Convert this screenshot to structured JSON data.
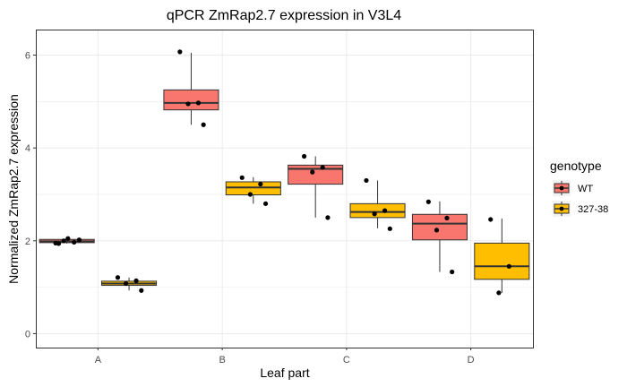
{
  "chart_data": {
    "type": "boxplot",
    "title": "qPCR ZmRap2.7 expression in V3L4",
    "xlabel": "Leaf part",
    "ylabel": "Normalized ZmRap2.7 expression",
    "categories": [
      "A",
      "B",
      "C",
      "D"
    ],
    "ylim": [
      -0.3,
      6.55
    ],
    "yticks": [
      0,
      2,
      4,
      6
    ],
    "grid": true,
    "legend": {
      "title": "genotype",
      "position": "right"
    },
    "series": [
      {
        "name": "WT",
        "color": "#F8766D",
        "boxes": [
          {
            "category": "A",
            "whisker_low": 1.94,
            "q1": 1.96,
            "median": 1.99,
            "q3": 2.03,
            "whisker_high": 2.05,
            "points": [
              1.95,
              1.97,
              2.0,
              2.02,
              2.05,
              1.94
            ]
          },
          {
            "category": "B",
            "whisker_low": 4.5,
            "q1": 4.82,
            "median": 4.97,
            "q3": 5.25,
            "whisker_high": 6.05,
            "points": [
              6.07,
              4.97,
              4.95,
              4.5
            ]
          },
          {
            "category": "C",
            "whisker_low": 2.5,
            "q1": 3.22,
            "median": 3.55,
            "q3": 3.63,
            "whisker_high": 3.82,
            "points": [
              3.82,
              3.58,
              3.48,
              2.5
            ]
          },
          {
            "category": "D",
            "whisker_low": 1.33,
            "q1": 2.02,
            "median": 2.37,
            "q3": 2.57,
            "whisker_high": 2.85,
            "points": [
              2.84,
              2.49,
              2.23,
              1.33
            ]
          }
        ]
      },
      {
        "name": "327-38",
        "color": "#FFBF00",
        "boxes": [
          {
            "category": "A",
            "whisker_low": 0.93,
            "q1": 1.04,
            "median": 1.08,
            "q3": 1.13,
            "whisker_high": 1.21,
            "points": [
              1.21,
              1.14,
              1.08,
              0.93
            ]
          },
          {
            "category": "B",
            "whisker_low": 2.8,
            "q1": 2.99,
            "median": 3.15,
            "q3": 3.27,
            "whisker_high": 3.37,
            "points": [
              3.36,
              3.22,
              3.0,
              2.8
            ]
          },
          {
            "category": "C",
            "whisker_low": 2.27,
            "q1": 2.5,
            "median": 2.62,
            "q3": 2.8,
            "whisker_high": 3.3,
            "points": [
              3.3,
              2.65,
              2.58,
              2.26
            ]
          },
          {
            "category": "D",
            "whisker_low": 0.88,
            "q1": 1.17,
            "median": 1.45,
            "q3": 1.95,
            "whisker_high": 2.48,
            "points": [
              2.46,
              1.45,
              0.88
            ]
          }
        ]
      }
    ]
  }
}
